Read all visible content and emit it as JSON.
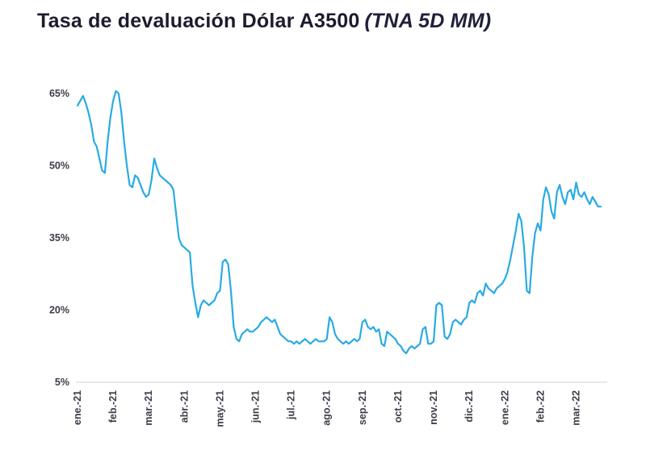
{
  "title": {
    "main": "Tasa de devaluación Dólar A3500",
    "subtitle": "(TNA 5D MM)"
  },
  "colors": {
    "line": "#29ABE2",
    "title_text": "#1c1c2e",
    "axis_text": "#3d3d49",
    "axis_line": "#d9d9d9",
    "background": "#ffffff"
  },
  "chart_data": {
    "type": "line",
    "title": "Tasa de devaluación Dólar A3500 (TNA 5D MM)",
    "series_name": "TNA 5D MM",
    "ylabel": "",
    "xlabel": "",
    "grid": false,
    "legend": false,
    "y_ticks": [
      5,
      20,
      35,
      50,
      65
    ],
    "y_tick_suffix": "%",
    "ylim": [
      5,
      68
    ],
    "x_tick_labels": [
      "ene.-21",
      "feb.-21",
      "mar.-21",
      "abr.-21",
      "may.-21",
      "jun.-21",
      "jul.-21",
      "ago.-21",
      "sep.-21",
      "oct.-21",
      "nov.-21",
      "dic.-21",
      "ene.-22",
      "feb.-22",
      "mar.-22"
    ],
    "x_tick_indices": [
      0,
      13,
      26,
      39,
      52,
      65,
      78,
      91,
      104,
      117,
      130,
      143,
      156,
      169,
      182
    ],
    "values": [
      62.5,
      63.5,
      64.5,
      63.0,
      61.0,
      58.5,
      55.0,
      54.0,
      51.5,
      49.0,
      48.5,
      55.0,
      60.0,
      63.5,
      65.5,
      65.0,
      61.0,
      55.0,
      50.0,
      46.0,
      45.5,
      48.0,
      47.5,
      46.0,
      44.5,
      43.5,
      44.0,
      47.0,
      51.5,
      49.5,
      48.0,
      47.5,
      47.0,
      46.5,
      46.0,
      45.0,
      40.0,
      35.0,
      33.5,
      33.0,
      32.5,
      32.0,
      25.0,
      21.5,
      18.5,
      21.0,
      22.0,
      21.5,
      21.0,
      21.5,
      22.0,
      23.5,
      24.0,
      30.0,
      30.5,
      29.5,
      24.0,
      16.5,
      14.0,
      13.5,
      15.0,
      15.5,
      16.0,
      15.5,
      15.5,
      16.0,
      16.5,
      17.5,
      18.0,
      18.5,
      18.0,
      17.5,
      18.0,
      16.5,
      15.0,
      14.5,
      14.0,
      13.5,
      13.5,
      13.0,
      13.5,
      13.0,
      13.5,
      14.0,
      13.5,
      13.0,
      13.5,
      14.0,
      13.5,
      13.5,
      13.5,
      14.0,
      18.5,
      17.5,
      15.0,
      14.0,
      13.5,
      13.0,
      13.5,
      13.0,
      13.5,
      14.0,
      13.5,
      14.0,
      17.5,
      18.0,
      16.5,
      16.0,
      16.5,
      15.5,
      16.0,
      13.0,
      12.5,
      15.5,
      15.0,
      14.5,
      14.0,
      13.0,
      12.5,
      11.5,
      11.0,
      12.0,
      12.5,
      12.0,
      12.5,
      13.0,
      16.0,
      16.5,
      13.0,
      13.0,
      13.5,
      21.0,
      21.5,
      21.0,
      14.5,
      14.0,
      15.0,
      17.5,
      18.0,
      17.5,
      17.0,
      18.0,
      18.5,
      21.5,
      22.0,
      21.5,
      23.5,
      24.0,
      23.0,
      25.5,
      24.5,
      24.0,
      23.5,
      24.5,
      25.0,
      25.5,
      26.5,
      28.0,
      30.5,
      33.5,
      36.5,
      40.0,
      38.5,
      33.0,
      24.0,
      23.5,
      31.0,
      36.0,
      38.0,
      36.5,
      43.0,
      45.5,
      44.0,
      40.5,
      39.0,
      44.5,
      46.0,
      43.5,
      42.0,
      44.5,
      45.0,
      43.0,
      46.5,
      44.0,
      43.5,
      44.5,
      43.0,
      42.0,
      43.5,
      42.5,
      41.5,
      41.5
    ]
  }
}
